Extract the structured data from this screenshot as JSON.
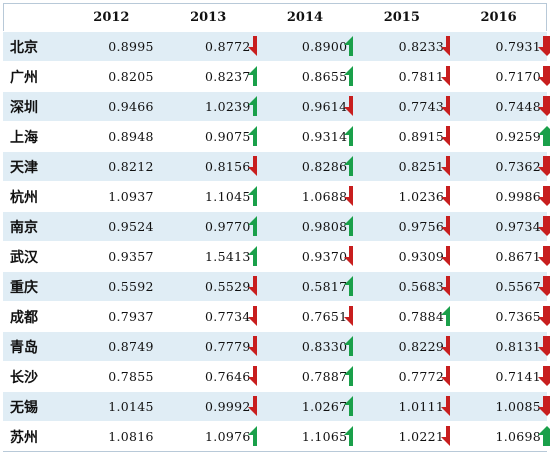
{
  "years": [
    "2012",
    "2013",
    "2014",
    "2015",
    "2016"
  ],
  "colors": {
    "up": "#1aa04a",
    "down": "#c81e1e",
    "stripe": "#e0edf5"
  },
  "rows": [
    {
      "city": "北京",
      "values": [
        "0.8995",
        "0.8772",
        "0.8900",
        "0.8233",
        "0.7931"
      ],
      "trend": [
        null,
        "down",
        "up",
        "down",
        "down"
      ]
    },
    {
      "city": "广州",
      "values": [
        "0.8205",
        "0.8237",
        "0.8655",
        "0.7811",
        "0.7170"
      ],
      "trend": [
        null,
        "up",
        "up",
        "down",
        "down"
      ]
    },
    {
      "city": "深圳",
      "values": [
        "0.9466",
        "1.0239",
        "0.9614",
        "0.7743",
        "0.7448"
      ],
      "trend": [
        null,
        "up",
        "down",
        "down",
        "down"
      ]
    },
    {
      "city": "上海",
      "values": [
        "0.8948",
        "0.9075",
        "0.9314",
        "0.8915",
        "0.9259"
      ],
      "trend": [
        null,
        "up",
        "up",
        "down",
        "up"
      ]
    },
    {
      "city": "天津",
      "values": [
        "0.8212",
        "0.8156",
        "0.8286",
        "0.8251",
        "0.7362"
      ],
      "trend": [
        null,
        "down",
        "up",
        "down",
        "down"
      ]
    },
    {
      "city": "杭州",
      "values": [
        "1.0937",
        "1.1045",
        "1.0688",
        "1.0236",
        "0.9986"
      ],
      "trend": [
        null,
        "up",
        "down",
        "down",
        "down"
      ]
    },
    {
      "city": "南京",
      "values": [
        "0.9524",
        "0.9770",
        "0.9808",
        "0.9756",
        "0.9734"
      ],
      "trend": [
        null,
        "up",
        "up",
        "down",
        "down"
      ]
    },
    {
      "city": "武汉",
      "values": [
        "0.9357",
        "1.5413",
        "0.9370",
        "0.9309",
        "0.8671"
      ],
      "trend": [
        null,
        "up",
        "down",
        "down",
        "down"
      ]
    },
    {
      "city": "重庆",
      "values": [
        "0.5592",
        "0.5529",
        "0.5817",
        "0.5683",
        "0.5567"
      ],
      "trend": [
        null,
        "down",
        "up",
        "down",
        "down"
      ]
    },
    {
      "city": "成都",
      "values": [
        "0.7937",
        "0.7734",
        "0.7651",
        "0.7884",
        "0.7365"
      ],
      "trend": [
        null,
        "down",
        "down",
        "up",
        "down"
      ]
    },
    {
      "city": "青岛",
      "values": [
        "0.8749",
        "0.7779",
        "0.8330",
        "0.8229",
        "0.8131"
      ],
      "trend": [
        null,
        "down",
        "up",
        "down",
        "down"
      ]
    },
    {
      "city": "长沙",
      "values": [
        "0.7855",
        "0.7646",
        "0.7887",
        "0.7772",
        "0.7141"
      ],
      "trend": [
        null,
        "down",
        "up",
        "down",
        "down"
      ]
    },
    {
      "city": "无锡",
      "values": [
        "1.0145",
        "0.9992",
        "1.0267",
        "1.0111",
        "1.0085"
      ],
      "trend": [
        null,
        "down",
        "up",
        "down",
        "down"
      ]
    },
    {
      "city": "苏州",
      "values": [
        "1.0816",
        "1.0976",
        "1.1065",
        "1.0221",
        "1.0698"
      ],
      "trend": [
        null,
        "up",
        "up",
        "down",
        "up"
      ]
    }
  ]
}
